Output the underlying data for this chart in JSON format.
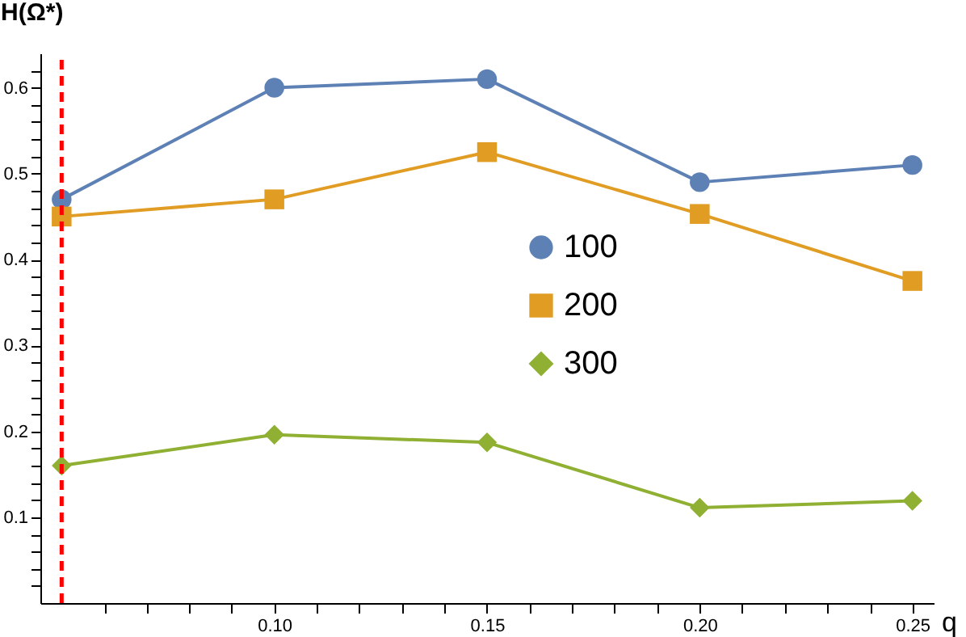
{
  "chart_data": {
    "type": "line",
    "ylabel": "H(Ω*)",
    "xlabel": "q",
    "x": [
      0.05,
      0.1,
      0.15,
      0.2,
      0.25
    ],
    "series": [
      {
        "name": "100",
        "color": "#5e81b5",
        "marker": "circle",
        "values": [
          0.47,
          0.6,
          0.61,
          0.49,
          0.51
        ]
      },
      {
        "name": "200",
        "color": "#e19c24",
        "marker": "square",
        "values": [
          0.45,
          0.47,
          0.525,
          0.453,
          0.375
        ]
      },
      {
        "name": "300",
        "color": "#8fb032",
        "marker": "diamond",
        "values": [
          0.16,
          0.196,
          0.187,
          0.111,
          0.119
        ]
      }
    ],
    "xlim": [
      0.045,
      0.255
    ],
    "ylim": [
      0,
      0.64
    ],
    "xticks": [
      {
        "value": 0.06,
        "label": null
      },
      {
        "value": 0.07,
        "label": null
      },
      {
        "value": 0.08,
        "label": null
      },
      {
        "value": 0.09,
        "label": null
      },
      {
        "value": 0.1,
        "label": "0.10"
      },
      {
        "value": 0.11,
        "label": null
      },
      {
        "value": 0.12,
        "label": null
      },
      {
        "value": 0.13,
        "label": null
      },
      {
        "value": 0.14,
        "label": null
      },
      {
        "value": 0.15,
        "label": "0.15"
      },
      {
        "value": 0.16,
        "label": null
      },
      {
        "value": 0.17,
        "label": null
      },
      {
        "value": 0.18,
        "label": null
      },
      {
        "value": 0.19,
        "label": null
      },
      {
        "value": 0.2,
        "label": "0.20"
      },
      {
        "value": 0.21,
        "label": null
      },
      {
        "value": 0.22,
        "label": null
      },
      {
        "value": 0.23,
        "label": null
      },
      {
        "value": 0.24,
        "label": null
      },
      {
        "value": 0.25,
        "label": "0.25"
      }
    ],
    "yticks": [
      {
        "value": 0.02,
        "label": null
      },
      {
        "value": 0.04,
        "label": null
      },
      {
        "value": 0.06,
        "label": null
      },
      {
        "value": 0.08,
        "label": null
      },
      0.1,
      {
        "value": 0.12,
        "label": null
      },
      {
        "value": 0.14,
        "label": null
      },
      {
        "value": 0.16,
        "label": null
      },
      {
        "value": 0.18,
        "label": null
      },
      0.2,
      {
        "value": 0.22,
        "label": null
      },
      {
        "value": 0.24,
        "label": null
      },
      {
        "value": 0.26,
        "label": null
      },
      {
        "value": 0.28,
        "label": null
      },
      0.3,
      {
        "value": 0.32,
        "label": null
      },
      {
        "value": 0.34,
        "label": null
      },
      {
        "value": 0.36,
        "label": null
      },
      {
        "value": 0.38,
        "label": null
      },
      0.4,
      {
        "value": 0.42,
        "label": null
      },
      {
        "value": 0.44,
        "label": null
      },
      {
        "value": 0.46,
        "label": null
      },
      {
        "value": 0.48,
        "label": null
      },
      0.5,
      {
        "value": 0.52,
        "label": null
      },
      {
        "value": 0.54,
        "label": null
      },
      {
        "value": 0.56,
        "label": null
      },
      {
        "value": 0.58,
        "label": null
      },
      0.6,
      {
        "value": 0.62,
        "label": null
      }
    ],
    "ref_lines": [
      {
        "axis": "x",
        "value": 0.05,
        "color": "#ff0000",
        "line_style": "dashed"
      }
    ],
    "legend": "center",
    "grid": false
  }
}
